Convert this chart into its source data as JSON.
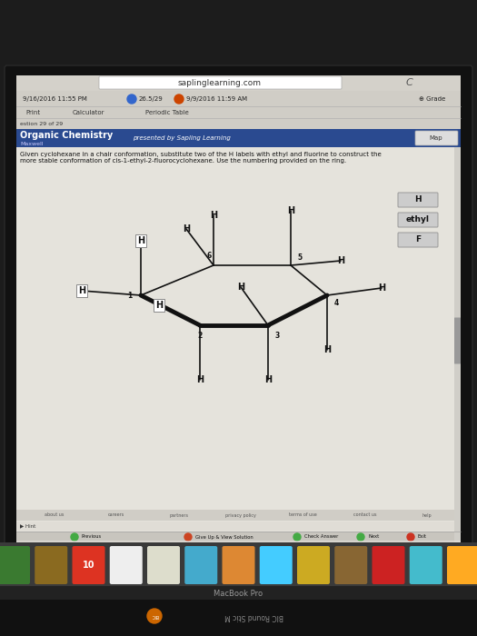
{
  "bg_dark": "#1a1a1a",
  "bg_screen": "#c5c3bc",
  "bg_content": "#e2e0d8",
  "bg_browser_bar": "#ccc9c2",
  "bg_header": "#2a4a90",
  "bg_dock": "#3a3a3a",
  "url_text": "saplinglearning.com",
  "datetime1": "9/16/2016 11:55 PM",
  "score_text": "26.5/29",
  "datetime2": "9/9/2016 11:59 AM",
  "grade_text": "Grade",
  "nav_items": [
    "Print",
    "Calculator",
    "Periodic Table"
  ],
  "question_info": "estion 29 of 29",
  "map_text": "Map",
  "subject": "Organic Chemistry",
  "subject_sub": "Maxwell",
  "presented_by": "presented by Sapling Learning",
  "question_text_line1": "Given cyclohexane in a chair conformation, substitute two of the H labels with ethyl and fluorine to construct the",
  "question_text_line2": "more stable conformation of cis-1-ethyl-2-fluorocyclohexane. Use the numbering provided on the ring.",
  "drag_labels": [
    "H",
    "ethyl",
    "F"
  ],
  "bottom_links": [
    "about us",
    "careers",
    "partners",
    "privacy policy",
    "terms of use",
    "contact us",
    "help"
  ],
  "hint_text": "Hint",
  "macbook_text": "MacBook Pro",
  "sticker_text": "BIC Round Stic M",
  "chair_color": "#111111",
  "H_color": "#111111",
  "node_label_color": "#111111"
}
